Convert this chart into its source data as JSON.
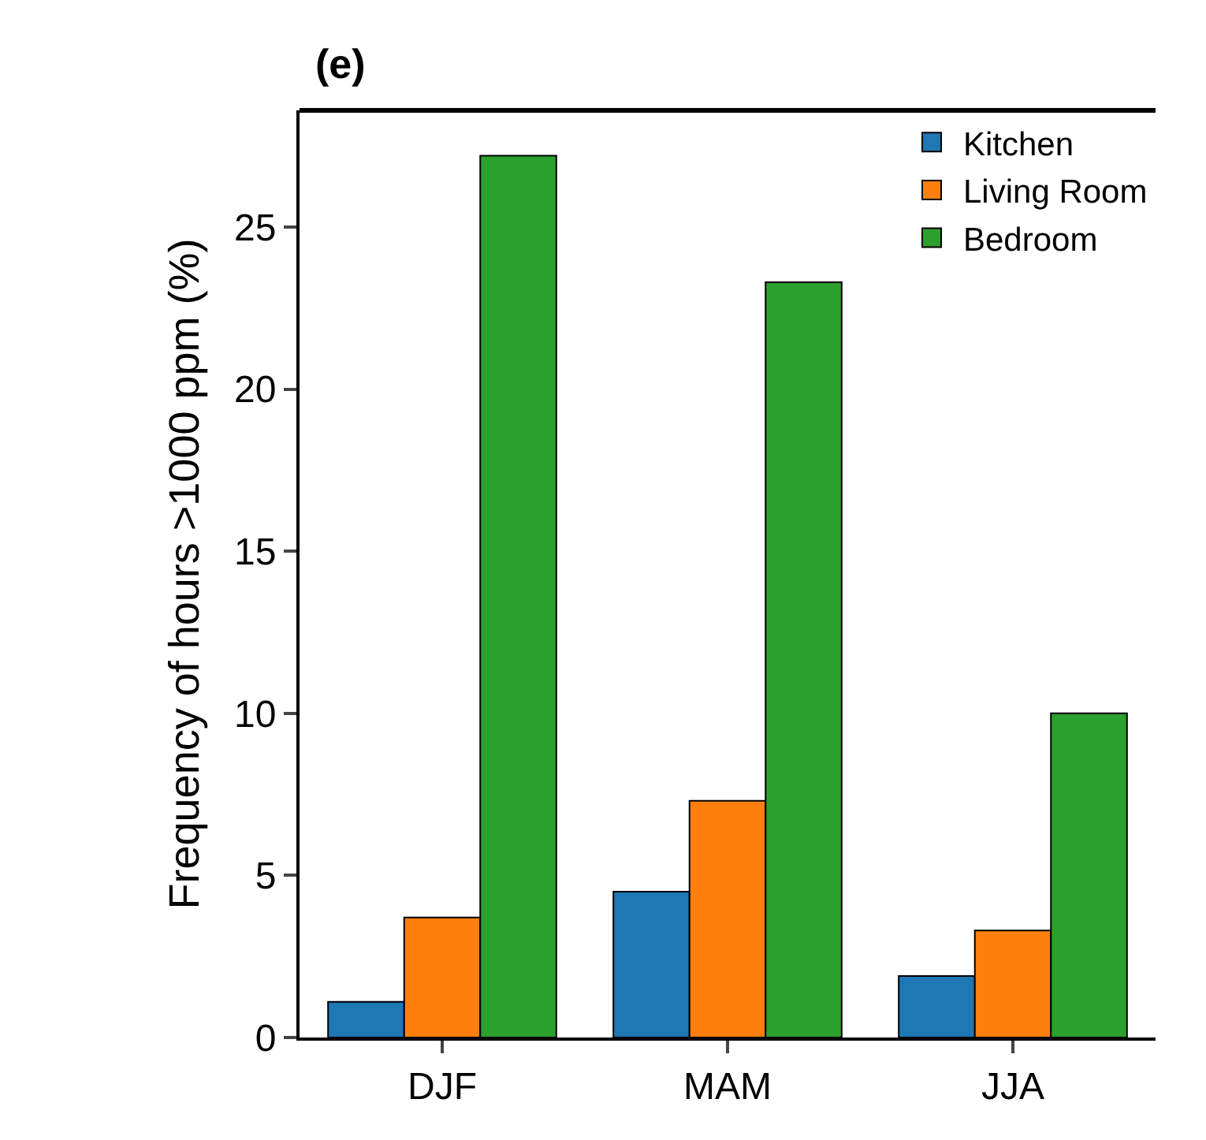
{
  "chart_data": {
    "type": "bar",
    "title": "(e)",
    "ylabel": "Frequency of hours >1000 ppm (%)",
    "categories": [
      "DJF",
      "MAM",
      "JJA"
    ],
    "series": [
      {
        "name": "Kitchen",
        "color": "#1f77b4",
        "values": [
          1.1,
          4.5,
          1.9
        ]
      },
      {
        "name": "Living Room",
        "color": "#ff7f0e",
        "values": [
          3.7,
          7.3,
          3.3
        ]
      },
      {
        "name": "Bedroom",
        "color": "#2ca02c",
        "values": [
          27.2,
          23.3,
          10.0
        ]
      }
    ],
    "ylim": [
      0,
      28.6
    ],
    "yticks": [
      0,
      5,
      10,
      15,
      20,
      25
    ],
    "grid": false,
    "legend": "top right"
  }
}
